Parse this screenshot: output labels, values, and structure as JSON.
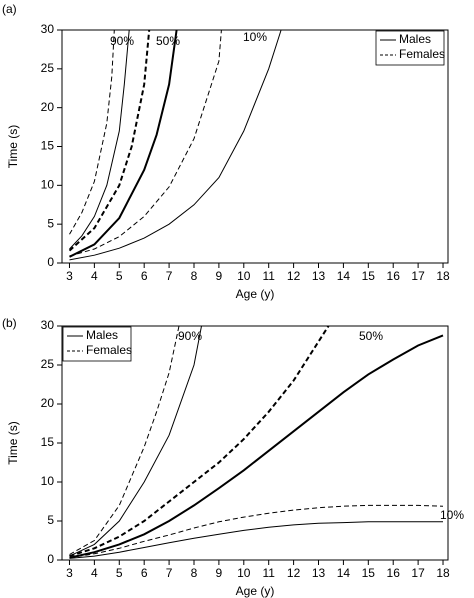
{
  "chart_data": [
    {
      "type": "line",
      "title": "(a)",
      "xlabel": "Age (y)",
      "ylabel": "Time (s)",
      "xlim": [
        2.7,
        18.2
      ],
      "ylim": [
        0,
        30
      ],
      "xticks": [
        3,
        4,
        5,
        6,
        7,
        8,
        9,
        10,
        11,
        12,
        13,
        14,
        15,
        16,
        17,
        18
      ],
      "yticks": [
        0,
        5,
        10,
        15,
        20,
        25,
        30
      ],
      "legend": "upper right",
      "annotations": [
        "90%",
        "50%",
        "10%"
      ],
      "series": [
        {
          "name": "Males",
          "color": "#000",
          "dash": false,
          "width": 1,
          "x": [
            3,
            4,
            5,
            6,
            7,
            8,
            9,
            10,
            11,
            11.5
          ],
          "values": [
            0.4,
            1,
            1.9,
            3.2,
            5,
            7.5,
            11,
            17,
            25,
            30
          ]
        },
        {
          "name": "Females",
          "color": "#000",
          "dash": true,
          "width": 1,
          "x": [
            3,
            4,
            5,
            6,
            7,
            8,
            9,
            9.1
          ],
          "values": [
            0.9,
            1.8,
            3.4,
            6,
            9.8,
            16,
            26,
            30
          ]
        },
        {
          "name": "Males",
          "color": "#000",
          "dash": false,
          "width": 2,
          "x": [
            3,
            4,
            5,
            6,
            6.5,
            7,
            7.3
          ],
          "values": [
            0.8,
            2.4,
            5.8,
            12,
            16.5,
            23,
            30
          ]
        },
        {
          "name": "Females",
          "color": "#000",
          "dash": true,
          "width": 2,
          "x": [
            3,
            4,
            5,
            5.5,
            6,
            6.2
          ],
          "values": [
            1.6,
            4.5,
            10,
            15,
            23,
            30
          ]
        },
        {
          "name": "Males",
          "color": "#000",
          "dash": false,
          "width": 1,
          "x": [
            3,
            3.5,
            4,
            4.5,
            5,
            5.2,
            5.4
          ],
          "values": [
            1.8,
            3.5,
            6,
            10,
            17,
            23,
            30
          ]
        },
        {
          "name": "Females",
          "color": "#000",
          "dash": true,
          "width": 1,
          "x": [
            3,
            3.5,
            4,
            4.5,
            4.7,
            4.8
          ],
          "values": [
            3.7,
            6.5,
            10.5,
            18,
            24,
            30
          ]
        }
      ]
    },
    {
      "type": "line",
      "title": "(b)",
      "xlabel": "Age (y)",
      "ylabel": "Time (s)",
      "xlim": [
        2.7,
        18.2
      ],
      "ylim": [
        0,
        30
      ],
      "xticks": [
        3,
        4,
        5,
        6,
        7,
        8,
        9,
        10,
        11,
        12,
        13,
        14,
        15,
        16,
        17,
        18
      ],
      "yticks": [
        0,
        5,
        10,
        15,
        20,
        25,
        30
      ],
      "legend": "upper left",
      "annotations": [
        "90%",
        "50%",
        "10%"
      ],
      "series": [
        {
          "name": "Males",
          "color": "#000",
          "dash": false,
          "width": 1,
          "x": [
            3,
            4,
            5,
            6,
            7,
            8,
            9,
            10,
            11,
            12,
            13,
            14,
            15,
            16,
            17,
            18
          ],
          "values": [
            0.2,
            0.5,
            1,
            1.6,
            2.2,
            2.8,
            3.3,
            3.8,
            4.2,
            4.5,
            4.7,
            4.8,
            4.9,
            4.9,
            4.9,
            4.9
          ]
        },
        {
          "name": "Females",
          "color": "#000",
          "dash": true,
          "width": 1,
          "x": [
            3,
            4,
            5,
            6,
            7,
            8,
            9,
            10,
            11,
            12,
            13,
            14,
            15,
            16,
            17,
            18
          ],
          "values": [
            0.3,
            0.8,
            1.5,
            2.4,
            3.2,
            4.1,
            4.9,
            5.5,
            6,
            6.4,
            6.7,
            6.9,
            7,
            7,
            7,
            6.9
          ]
        },
        {
          "name": "Males",
          "color": "#000",
          "dash": false,
          "width": 2,
          "x": [
            3,
            4,
            5,
            6,
            7,
            8,
            9,
            10,
            11,
            12,
            13,
            14,
            15,
            16,
            17,
            18
          ],
          "values": [
            0.3,
            1,
            2,
            3.3,
            5,
            7,
            9.2,
            11.5,
            14,
            16.5,
            19,
            21.5,
            23.8,
            25.7,
            27.5,
            28.8
          ]
        },
        {
          "name": "Females",
          "color": "#000",
          "dash": true,
          "width": 2,
          "x": [
            3,
            4,
            5,
            6,
            7,
            8,
            9,
            10,
            11,
            12,
            13,
            13.4
          ],
          "values": [
            0.5,
            1.5,
            3,
            5,
            7.5,
            10,
            12.5,
            15.5,
            19,
            23,
            28,
            30
          ]
        },
        {
          "name": "Males",
          "color": "#000",
          "dash": false,
          "width": 1,
          "x": [
            3,
            4,
            5,
            6,
            7,
            8,
            8.3
          ],
          "values": [
            0.5,
            2,
            5,
            10,
            16,
            25,
            30
          ]
        },
        {
          "name": "Females",
          "color": "#000",
          "dash": true,
          "width": 1,
          "x": [
            3,
            4,
            5,
            6,
            6.5,
            7,
            7.4
          ],
          "values": [
            0.7,
            2.5,
            7,
            14.5,
            19,
            24,
            30
          ]
        }
      ]
    }
  ]
}
